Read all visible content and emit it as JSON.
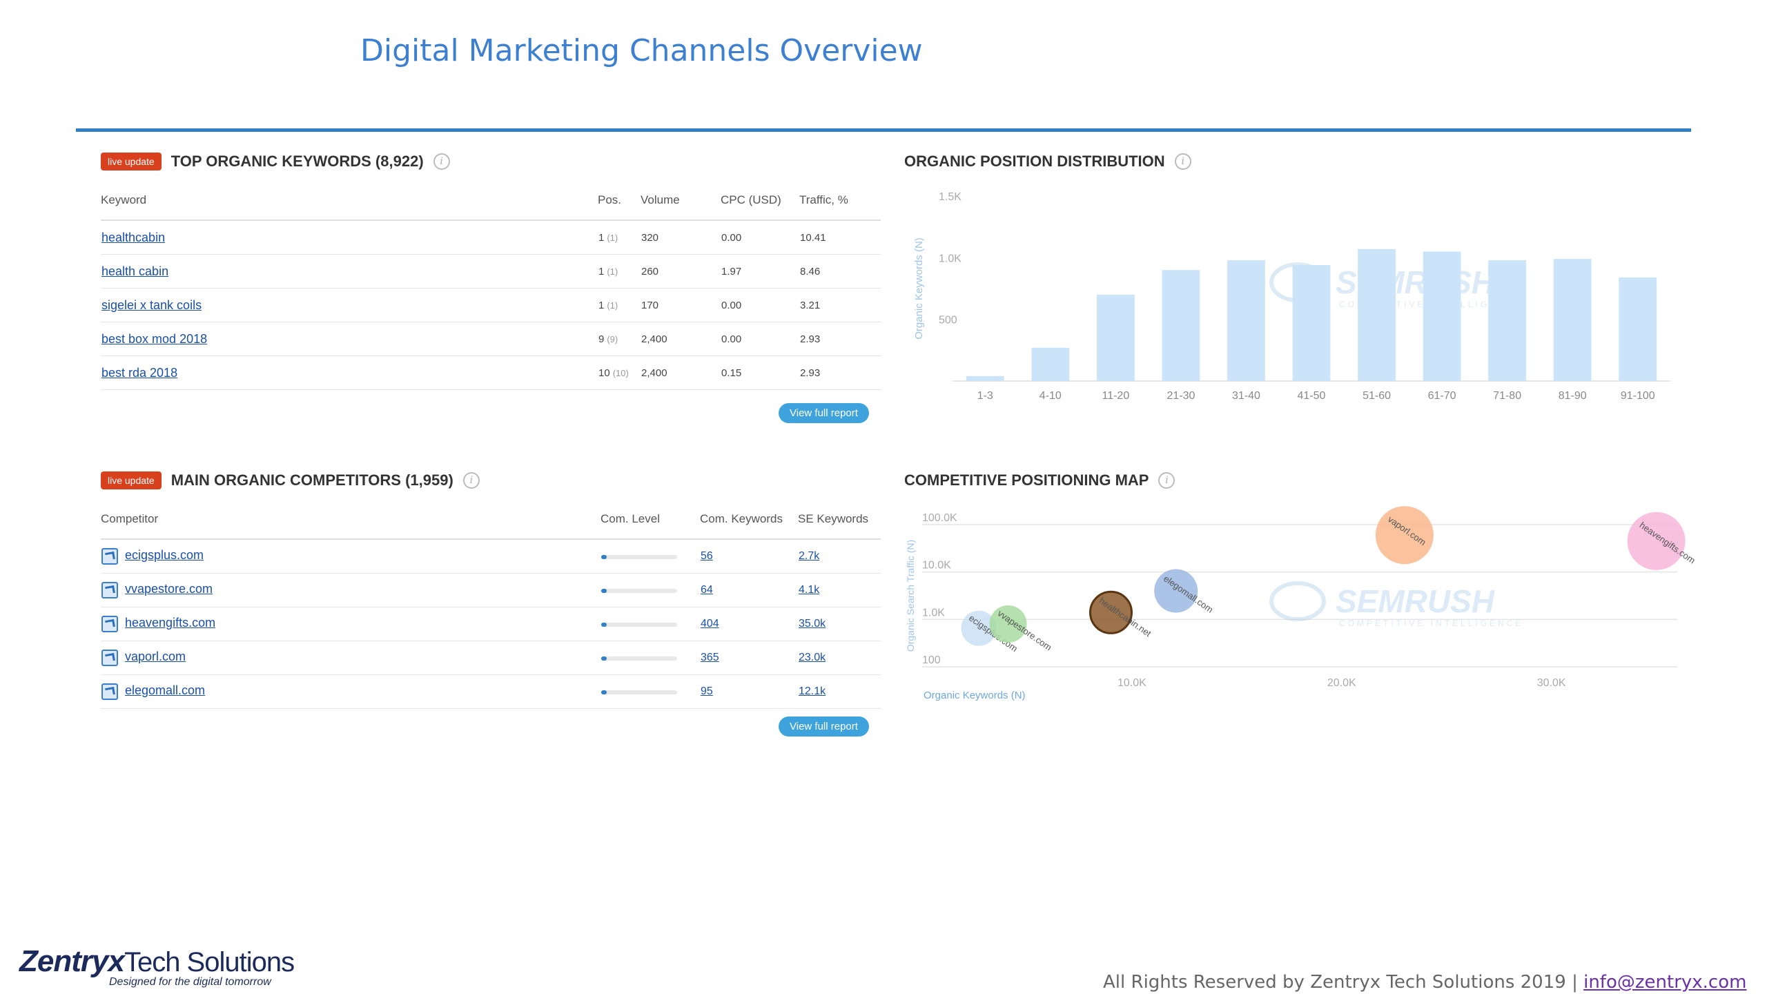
{
  "page": {
    "title": "Digital Marketing Channels Overview",
    "footer_text": "All Rights Reserved by Zentryx Tech Solutions 2019 |",
    "footer_email": "info@zentryx.com",
    "logo_main": "Zentryx",
    "logo_sub": "Tech Solutions",
    "logo_tagline": "Designed for the digital tomorrow"
  },
  "keywords_panel": {
    "badge": "live update",
    "title": "TOP ORGANIC KEYWORDS (8,922)",
    "columns": [
      "Keyword",
      "Pos.",
      "Volume",
      "CPC (USD)",
      "Traffic, %"
    ],
    "rows": [
      {
        "keyword": "healthcabin",
        "pos": "1",
        "pos_prev": "(1)",
        "volume": "320",
        "cpc": "0.00",
        "traffic": "10.41"
      },
      {
        "keyword": "health cabin",
        "pos": "1",
        "pos_prev": "(1)",
        "volume": "260",
        "cpc": "1.97",
        "traffic": "8.46"
      },
      {
        "keyword": "sigelei x tank coils",
        "pos": "1",
        "pos_prev": "(1)",
        "volume": "170",
        "cpc": "0.00",
        "traffic": "3.21"
      },
      {
        "keyword": "best box mod 2018",
        "pos": "9",
        "pos_prev": "(9)",
        "volume": "2,400",
        "cpc": "0.00",
        "traffic": "2.93"
      },
      {
        "keyword": "best rda 2018",
        "pos": "10",
        "pos_prev": "(10)",
        "volume": "2,400",
        "cpc": "0.15",
        "traffic": "2.93"
      }
    ],
    "button": "View full report"
  },
  "competitors_panel": {
    "badge": "live update",
    "title": "MAIN ORGANIC COMPETITORS (1,959)",
    "columns": [
      "Competitor",
      "Com. Level",
      "Com. Keywords",
      "SE Keywords"
    ],
    "rows": [
      {
        "domain": "ecigsplus.com",
        "level": 0.07,
        "com_keywords": "56",
        "se_keywords": "2.7k"
      },
      {
        "domain": "vvapestore.com",
        "level": 0.07,
        "com_keywords": "64",
        "se_keywords": "4.1k"
      },
      {
        "domain": "heavengifts.com",
        "level": 0.07,
        "com_keywords": "404",
        "se_keywords": "35.0k"
      },
      {
        "domain": "vaporl.com",
        "level": 0.07,
        "com_keywords": "365",
        "se_keywords": "23.0k"
      },
      {
        "domain": "elegomall.com",
        "level": 0.07,
        "com_keywords": "95",
        "se_keywords": "12.1k"
      }
    ],
    "button": "View full report"
  },
  "watermark": {
    "name": "SEMRUSH",
    "tagline": "COMPETITIVE INTELLIGENCE"
  },
  "chart_data": [
    {
      "type": "bar",
      "title": "ORGANIC POSITION DISTRIBUTION",
      "ylabel": "Organic Keywords (N)",
      "xlabel": "",
      "categories": [
        "1-3",
        "4-10",
        "11-20",
        "21-30",
        "31-40",
        "41-50",
        "51-60",
        "61-70",
        "71-80",
        "81-90",
        "91-100"
      ],
      "values": [
        40,
        270,
        700,
        900,
        980,
        940,
        1070,
        1050,
        980,
        990,
        840
      ],
      "ylim": [
        0,
        1500
      ],
      "yticks": [
        {
          "value": 500,
          "label": "500"
        },
        {
          "value": 1000,
          "label": "1.0K"
        },
        {
          "value": 1500,
          "label": "1.5K"
        }
      ],
      "color": "#cce4f9",
      "grid": false
    },
    {
      "type": "scatter",
      "title": "COMPETITIVE POSITIONING MAP",
      "xlabel": "Organic Keywords (N)",
      "ylabel": "Organic Search Traffic (N)",
      "x_scale": "linear",
      "y_scale": "log",
      "xlim": [
        0,
        36000
      ],
      "ylim": [
        100,
        100000
      ],
      "xticks": [
        {
          "value": 10000,
          "label": "10.0K"
        },
        {
          "value": 20000,
          "label": "20.0K"
        },
        {
          "value": 30000,
          "label": "30.0K"
        }
      ],
      "yticks": [
        {
          "value": 100,
          "label": "100"
        },
        {
          "value": 1000,
          "label": "1.0K"
        },
        {
          "value": 10000,
          "label": "10.0K"
        },
        {
          "value": 100000,
          "label": "100.0K"
        }
      ],
      "grid": true,
      "points": [
        {
          "name": "ecigsplus.com",
          "x": 2700,
          "y": 650,
          "size": 0.45,
          "color": "#c9e0f4"
        },
        {
          "name": "vvapestore.com",
          "x": 4100,
          "y": 800,
          "size": 0.5,
          "color": "#a8dca0"
        },
        {
          "name": "healthcabin.net",
          "x": 9000,
          "y": 1400,
          "size": 0.6,
          "color": "#8b5a2b"
        },
        {
          "name": "elegomall.com",
          "x": 12100,
          "y": 4000,
          "size": 0.65,
          "color": "#9bb8e2"
        },
        {
          "name": "vaporl.com",
          "x": 23000,
          "y": 60000,
          "size": 1.0,
          "color": "#f9b88c"
        },
        {
          "name": "heavengifts.com",
          "x": 35000,
          "y": 45000,
          "size": 1.0,
          "color": "#f7b6d9"
        }
      ]
    }
  ]
}
